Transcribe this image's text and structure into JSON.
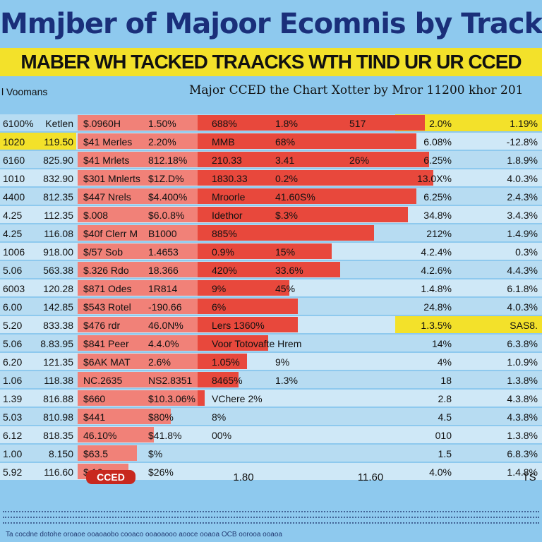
{
  "title": "Mmjber of Majoor Ecomnis by Track",
  "subtitle": "MABER WH TACKED TRAACKS WTH TIND UR UR CCED",
  "panel_left_label": "l Voomans",
  "panel_title": "Major CCED the Chart  Xotter by Mror  11200 khor 201",
  "footer_text": "Ta cocdne dotohe oroaoe ooaoaobo cooaco ooaoaooo aooce ooaoa OCB oorooa ooaoa",
  "colors": {
    "background": "#8ec9ee",
    "row_light": "#b7dcf2",
    "row_alt": "#cfe8f7",
    "highlight": "#f3e12a",
    "bar_red": "#e8483c",
    "bar_pink": "#f7b0aa",
    "title": "#1a2f7a"
  },
  "chart_data": {
    "type": "bar",
    "title": "Mmjber of Majoor Ecomnis by Track",
    "subtitle": "MABER WH TACKED TRAACKS WTH TIND UR UR CCED",
    "xlim": [
      0,
      100
    ],
    "grid": false,
    "legend": "none",
    "rows": [
      {
        "col1": "6100%",
        "col2": "Ketlen",
        "label": "$.0960H",
        "pct1": "1.50%",
        "pct2": "688%",
        "pct3": "1.8%",
        "pct4": "517",
        "pct5": "2.0%",
        "right": "1.19%",
        "value": 82,
        "highlight": "right"
      },
      {
        "col1": "1020",
        "col2": "119.50",
        "label": "$41 Merles",
        "pct1": "2.20%",
        "pct2": "MMB",
        "pct3": "68%",
        "pct4": "",
        "pct5": "6.08%",
        "right": "-12.8%",
        "value": 80,
        "highlight": "left"
      },
      {
        "col1": "6160",
        "col2": "825.90",
        "label": "$41 Mrlets",
        "pct1": "812.18%",
        "pct2": "210.33",
        "pct3": "3.41",
        "pct4": "26%",
        "pct5": "6.25%",
        "right": "1.8.9%",
        "value": 83,
        "highlight": ""
      },
      {
        "col1": "1010",
        "col2": "832.90",
        "label": "$301 Mnlerts",
        "pct1": "$1Z.D%",
        "pct2": "1830.33",
        "pct3": "0.2%",
        "pct4": "",
        "pct5": "13.0X%",
        "right": "4.0.3%",
        "value": 84,
        "highlight": ""
      },
      {
        "col1": "4400",
        "col2": "812.35",
        "label": "$447 Nrels",
        "pct1": "$4.400%",
        "pct2": "Mroorle",
        "pct3": "41.60S%",
        "pct4": "",
        "pct5": "6.25%",
        "right": "2.4.3%",
        "value": 80,
        "highlight": ""
      },
      {
        "col1": "4.25",
        "col2": "112.35",
        "label": "$.008",
        "pct1": "$6.0.8%",
        "pct2": "Idethor",
        "pct3": "$.3%",
        "pct4": "",
        "pct5": "34.8%",
        "right": "3.4.3%",
        "value": 78,
        "highlight": ""
      },
      {
        "col1": "4.25",
        "col2": "116.08",
        "label": "$40f Clerr M",
        "pct1": "B1000",
        "pct2": "885%",
        "pct3": "",
        "pct4": "",
        "pct5": "212%",
        "right": "1.4.9%",
        "value": 70,
        "highlight": ""
      },
      {
        "col1": "1006",
        "col2": "918.00",
        "label": "$/57 Sob",
        "pct1": "1.4653",
        "pct2": "0.9%",
        "pct3": "15%",
        "pct4": "",
        "pct5": "4.2.4%",
        "right": "0.3%",
        "value": 60,
        "highlight": ""
      },
      {
        "col1": "5.06",
        "col2": "563.38",
        "label": "$.326 Rdo",
        "pct1": "18.366",
        "pct2": "420%",
        "pct3": "33.6%",
        "pct4": "",
        "pct5": "4.2.6%",
        "right": "4.4.3%",
        "value": 62,
        "highlight": ""
      },
      {
        "col1": "6003",
        "col2": "120.28",
        "label": "$871 Odes",
        "pct1": "1R814",
        "pct2": "9%",
        "pct3": "45%",
        "pct4": "",
        "pct5": "1.4.8%",
        "right": "6.1.8%",
        "value": 50,
        "highlight": ""
      },
      {
        "col1": "6.00",
        "col2": "142.85",
        "label": "$543 Rotel",
        "pct1": "-190.66",
        "pct2": "6%",
        "pct3": "",
        "pct4": "",
        "pct5": "24.8%",
        "right": "4.0.3%",
        "value": 52,
        "highlight": ""
      },
      {
        "col1": "5.20",
        "col2": "833.38",
        "label": "$476 rdr",
        "pct1": "46.0N%",
        "pct2": "Lers 1360%",
        "pct3": "",
        "pct4": "",
        "pct5": "1.3.5%",
        "right": "SAS8.",
        "value": 52,
        "highlight": "right"
      },
      {
        "col1": "5.06",
        "col2": "8.83.95",
        "label": "$841 Peer",
        "pct1": "4.4.0%",
        "pct2": "Voor Totovafte Hrem",
        "pct3": "",
        "pct4": "",
        "pct5": "14%",
        "right": "6.3.8%",
        "value": 45,
        "highlight": ""
      },
      {
        "col1": "6.20",
        "col2": "121.35",
        "label": "$6AK MAT",
        "pct1": "2.6%",
        "pct2": "1.05%",
        "pct3": "9%",
        "pct4": "",
        "pct5": "4%",
        "right": "1.0.9%",
        "value": 40,
        "highlight": ""
      },
      {
        "col1": "1.06",
        "col2": "118.38",
        "label": "NC.2635",
        "pct1": "NS2.8351",
        "pct2": "8465%",
        "pct3": "1.3%",
        "pct4": "",
        "pct5": "18",
        "right": "1.3.8%",
        "value": 38,
        "highlight": ""
      },
      {
        "col1": "1.39",
        "col2": "816.88",
        "label": "$660",
        "pct1": "$10.3.06%",
        "pct2": "VChere 2%",
        "pct3": "",
        "pct4": "",
        "pct5": "2.8",
        "right": "4.3.8%",
        "value": 30,
        "highlight": ""
      },
      {
        "col1": "5.03",
        "col2": "810.98",
        "label": "$441",
        "pct1": "$80%",
        "pct2": "8%",
        "pct3": "",
        "pct4": "",
        "pct5": "4.5",
        "right": "4.3.8%",
        "value": 22,
        "highlight": ""
      },
      {
        "col1": "6.12",
        "col2": "818.35",
        "label": "46.10%",
        "pct1": "$41.8%",
        "pct2": "00%",
        "pct3": "",
        "pct4": "",
        "pct5": "010",
        "right": "1.3.8%",
        "value": 18,
        "highlight": ""
      },
      {
        "col1": "1.00",
        "col2": "8.150",
        "label": "$63.5",
        "pct1": "$%",
        "pct2": "",
        "pct3": "",
        "pct4": "",
        "pct5": "1.5",
        "right": "6.8.3%",
        "value": 14,
        "highlight": ""
      },
      {
        "col1": "5.92",
        "col2": "116.60",
        "label": "$.16",
        "pct1": "$26%",
        "pct2": "",
        "pct3": "",
        "pct4": "",
        "pct5": "4.0%",
        "right": "1.4.8%",
        "value": 12,
        "highlight": ""
      }
    ],
    "axis_labels": [
      "CCED",
      "1.80",
      "11.60",
      "TS"
    ]
  }
}
